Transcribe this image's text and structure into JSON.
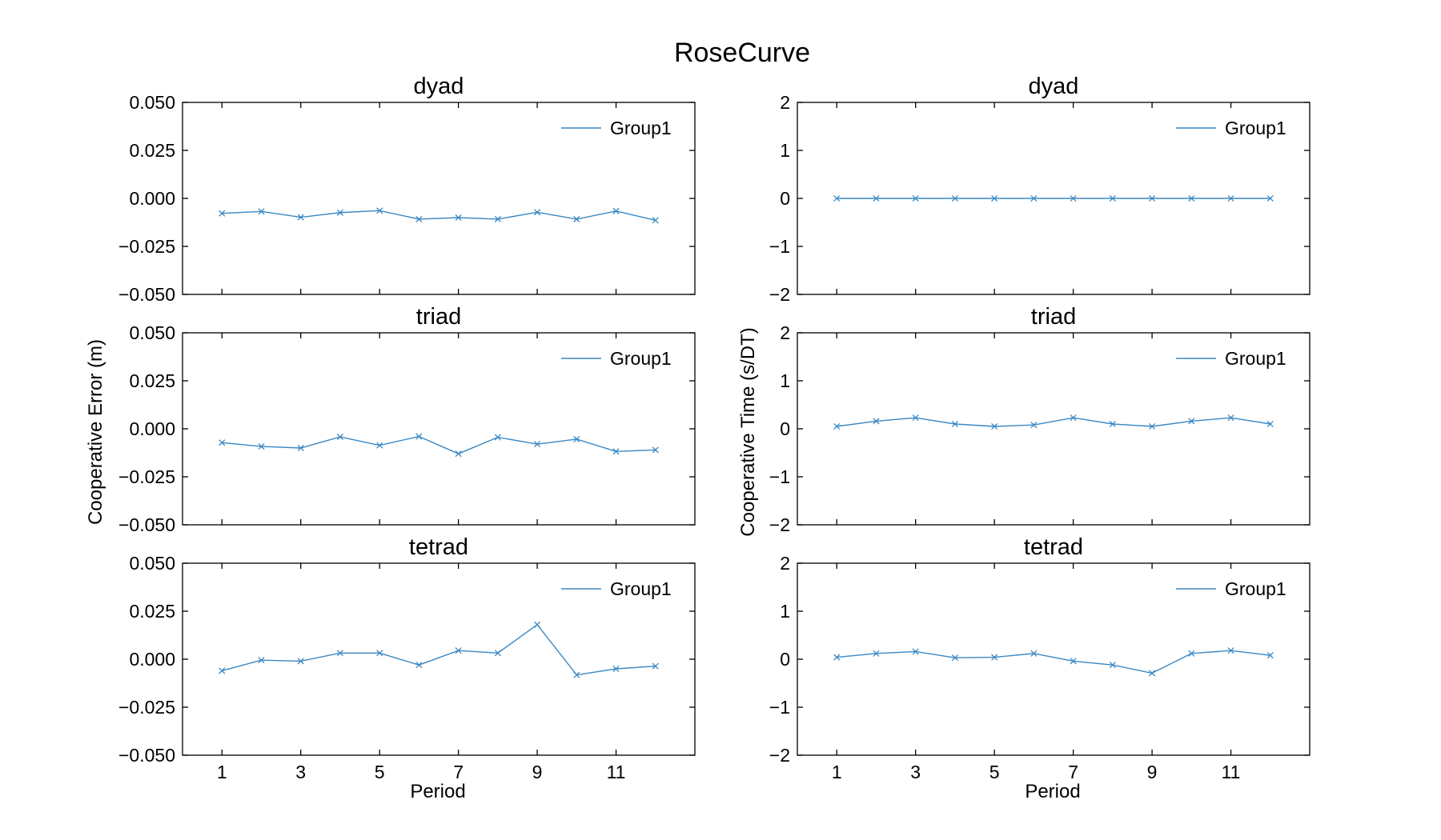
{
  "figure": {
    "title": "RoseCurve",
    "left_ylabel": "Cooperative Error (m)",
    "right_ylabel": "Cooperative Time (s/DT)",
    "xlabel": "Period",
    "series_color": "#3a88c4"
  },
  "chart_data": [
    {
      "type": "line",
      "title": "dyad",
      "column": "left",
      "row": 0,
      "xlim": [
        0,
        13
      ],
      "ylim": [
        -0.05,
        0.05
      ],
      "yticks": [
        -0.05,
        -0.025,
        0.0,
        0.025,
        0.05
      ],
      "yticklabels": [
        "−0.050",
        "−0.025",
        "0.000",
        "0.025",
        "0.050"
      ],
      "xticks": [
        1,
        3,
        5,
        7,
        9,
        11
      ],
      "xticklabels": [],
      "legend": "top-right",
      "grid": false,
      "x": [
        1,
        2,
        3,
        4,
        5,
        6,
        7,
        8,
        9,
        10,
        11,
        12
      ],
      "series": [
        {
          "name": "Group1",
          "values": [
            -0.0078,
            -0.0068,
            -0.0098,
            -0.0074,
            -0.0064,
            -0.0108,
            -0.01,
            -0.0108,
            -0.0072,
            -0.0108,
            -0.0066,
            -0.0114
          ]
        }
      ]
    },
    {
      "type": "line",
      "title": "dyad",
      "column": "right",
      "row": 0,
      "xlim": [
        0,
        13
      ],
      "ylim": [
        -2,
        2
      ],
      "yticks": [
        -2,
        -1,
        0,
        1,
        2
      ],
      "yticklabels": [
        "−2",
        "−1",
        "0",
        "1",
        "2"
      ],
      "xticks": [
        1,
        3,
        5,
        7,
        9,
        11
      ],
      "xticklabels": [],
      "legend": "top-right",
      "grid": false,
      "x": [
        1,
        2,
        3,
        4,
        5,
        6,
        7,
        8,
        9,
        10,
        11,
        12
      ],
      "series": [
        {
          "name": "Group1",
          "values": [
            0,
            0,
            0,
            0,
            0,
            0,
            0,
            0,
            0,
            0,
            0,
            0
          ]
        }
      ]
    },
    {
      "type": "line",
      "title": "triad",
      "column": "left",
      "row": 1,
      "xlim": [
        0,
        13
      ],
      "ylim": [
        -0.05,
        0.05
      ],
      "yticks": [
        -0.05,
        -0.025,
        0.0,
        0.025,
        0.05
      ],
      "yticklabels": [
        "−0.050",
        "−0.025",
        "0.000",
        "0.025",
        "0.050"
      ],
      "xticks": [
        1,
        3,
        5,
        7,
        9,
        11
      ],
      "xticklabels": [],
      "legend": "top-right",
      "grid": false,
      "x": [
        1,
        2,
        3,
        4,
        5,
        6,
        7,
        8,
        9,
        10,
        11,
        12
      ],
      "series": [
        {
          "name": "Group1",
          "values": [
            -0.0072,
            -0.0092,
            -0.01,
            -0.0042,
            -0.0086,
            -0.004,
            -0.013,
            -0.0044,
            -0.008,
            -0.0054,
            -0.0118,
            -0.011
          ]
        }
      ]
    },
    {
      "type": "line",
      "title": "triad",
      "column": "right",
      "row": 1,
      "xlim": [
        0,
        13
      ],
      "ylim": [
        -2,
        2
      ],
      "yticks": [
        -2,
        -1,
        0,
        1,
        2
      ],
      "yticklabels": [
        "−2",
        "−1",
        "0",
        "1",
        "2"
      ],
      "xticks": [
        1,
        3,
        5,
        7,
        9,
        11
      ],
      "xticklabels": [],
      "legend": "top-right",
      "grid": false,
      "x": [
        1,
        2,
        3,
        4,
        5,
        6,
        7,
        8,
        9,
        10,
        11,
        12
      ],
      "series": [
        {
          "name": "Group1",
          "values": [
            0.05,
            0.16,
            0.23,
            0.1,
            0.05,
            0.08,
            0.23,
            0.1,
            0.05,
            0.16,
            0.23,
            0.1
          ]
        }
      ]
    },
    {
      "type": "line",
      "title": "tetrad",
      "column": "left",
      "row": 2,
      "xlim": [
        0,
        13
      ],
      "ylim": [
        -0.05,
        0.05
      ],
      "yticks": [
        -0.05,
        -0.025,
        0.0,
        0.025,
        0.05
      ],
      "yticklabels": [
        "−0.050",
        "−0.025",
        "0.000",
        "0.025",
        "0.050"
      ],
      "xticks": [
        1,
        3,
        5,
        7,
        9,
        11
      ],
      "xticklabels": [
        "1",
        "3",
        "5",
        "7",
        "9",
        "11"
      ],
      "legend": "top-right",
      "grid": false,
      "x": [
        1,
        2,
        3,
        4,
        5,
        6,
        7,
        8,
        9,
        10,
        11,
        12
      ],
      "series": [
        {
          "name": "Group1",
          "values": [
            -0.006,
            -0.0005,
            -0.001,
            0.0032,
            0.0032,
            -0.003,
            0.0045,
            0.0032,
            0.018,
            -0.0082,
            -0.005,
            -0.0036
          ]
        }
      ]
    },
    {
      "type": "line",
      "title": "tetrad",
      "column": "right",
      "row": 2,
      "xlim": [
        0,
        13
      ],
      "ylim": [
        -2,
        2
      ],
      "yticks": [
        -2,
        -1,
        0,
        1,
        2
      ],
      "yticklabels": [
        "−2",
        "−1",
        "0",
        "1",
        "2"
      ],
      "xticks": [
        1,
        3,
        5,
        7,
        9,
        11
      ],
      "xticklabels": [
        "1",
        "3",
        "5",
        "7",
        "9",
        "11"
      ],
      "legend": "top-right",
      "grid": false,
      "x": [
        1,
        2,
        3,
        4,
        5,
        6,
        7,
        8,
        9,
        10,
        11,
        12
      ],
      "series": [
        {
          "name": "Group1",
          "values": [
            0.04,
            0.12,
            0.16,
            0.03,
            0.04,
            0.12,
            -0.04,
            -0.12,
            -0.29,
            0.12,
            0.18,
            0.08
          ]
        }
      ]
    }
  ]
}
